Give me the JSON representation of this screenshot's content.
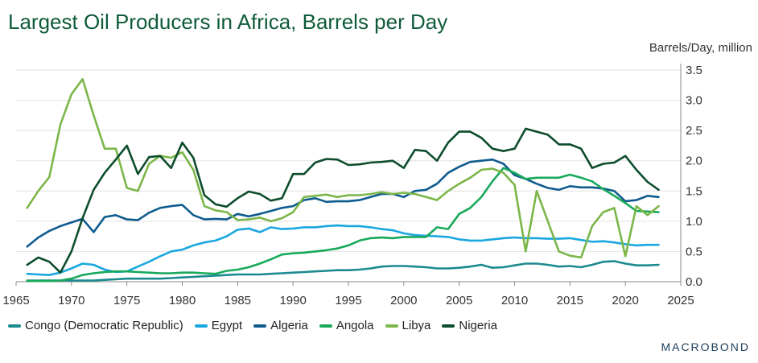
{
  "chart_data": {
    "type": "line",
    "title": "Largest Oil Producers in Africa, Barrels per Day",
    "ylabel": "Barrels/Day, million",
    "xlim": [
      1965,
      2025
    ],
    "ylim": [
      0,
      3.5
    ],
    "xticks": [
      1965,
      1970,
      1975,
      1980,
      1985,
      1990,
      1995,
      2000,
      2005,
      2010,
      2015,
      2020,
      2025
    ],
    "yticks": [
      "0.0",
      "0.5",
      "1.0",
      "1.5",
      "2.0",
      "2.5",
      "3.0",
      "3.5"
    ],
    "x": [
      1966,
      1967,
      1968,
      1969,
      1970,
      1971,
      1972,
      1973,
      1974,
      1975,
      1976,
      1977,
      1978,
      1979,
      1980,
      1981,
      1982,
      1983,
      1984,
      1985,
      1986,
      1987,
      1988,
      1989,
      1990,
      1991,
      1992,
      1993,
      1994,
      1995,
      1996,
      1997,
      1998,
      1999,
      2000,
      2001,
      2002,
      2003,
      2004,
      2005,
      2006,
      2007,
      2008,
      2009,
      2010,
      2011,
      2012,
      2013,
      2014,
      2015,
      2016,
      2017,
      2018,
      2019,
      2020,
      2021,
      2022,
      2023
    ],
    "series": [
      {
        "name": "Congo (Democratic Republic)",
        "color": "#1b8a8f",
        "values": [
          0.02,
          0.02,
          0.02,
          0.02,
          0.02,
          0.02,
          0.02,
          0.03,
          0.04,
          0.05,
          0.05,
          0.05,
          0.05,
          0.06,
          0.07,
          0.08,
          0.09,
          0.1,
          0.11,
          0.12,
          0.12,
          0.12,
          0.13,
          0.14,
          0.15,
          0.16,
          0.17,
          0.18,
          0.19,
          0.19,
          0.2,
          0.22,
          0.25,
          0.26,
          0.26,
          0.25,
          0.24,
          0.22,
          0.22,
          0.23,
          0.25,
          0.28,
          0.23,
          0.24,
          0.27,
          0.3,
          0.3,
          0.28,
          0.25,
          0.26,
          0.24,
          0.28,
          0.33,
          0.34,
          0.3,
          0.27,
          0.27,
          0.28
        ]
      },
      {
        "name": "Egypt",
        "color": "#1aa7e0",
        "values": [
          0.13,
          0.12,
          0.11,
          0.15,
          0.22,
          0.3,
          0.28,
          0.2,
          0.16,
          0.17,
          0.25,
          0.33,
          0.42,
          0.5,
          0.53,
          0.6,
          0.65,
          0.68,
          0.75,
          0.86,
          0.88,
          0.82,
          0.9,
          0.87,
          0.88,
          0.9,
          0.9,
          0.92,
          0.93,
          0.92,
          0.92,
          0.9,
          0.87,
          0.85,
          0.8,
          0.77,
          0.76,
          0.75,
          0.74,
          0.7,
          0.68,
          0.68,
          0.7,
          0.72,
          0.73,
          0.72,
          0.72,
          0.71,
          0.71,
          0.72,
          0.69,
          0.66,
          0.67,
          0.65,
          0.62,
          0.6,
          0.61,
          0.61
        ]
      },
      {
        "name": "Algeria",
        "color": "#0e5c8e",
        "values": [
          0.58,
          0.73,
          0.84,
          0.92,
          0.98,
          1.04,
          0.82,
          1.07,
          1.1,
          1.03,
          1.02,
          1.14,
          1.22,
          1.25,
          1.27,
          1.1,
          1.03,
          1.04,
          1.03,
          1.12,
          1.08,
          1.12,
          1.17,
          1.22,
          1.25,
          1.35,
          1.38,
          1.32,
          1.33,
          1.33,
          1.35,
          1.4,
          1.45,
          1.45,
          1.4,
          1.5,
          1.52,
          1.62,
          1.8,
          1.9,
          1.98,
          2.0,
          2.02,
          1.95,
          1.76,
          1.7,
          1.62,
          1.55,
          1.52,
          1.58,
          1.56,
          1.56,
          1.54,
          1.5,
          1.33,
          1.35,
          1.42,
          1.4
        ]
      },
      {
        "name": "Angola",
        "color": "#18a95a",
        "values": [
          0.01,
          0.01,
          0.01,
          0.02,
          0.05,
          0.11,
          0.14,
          0.16,
          0.17,
          0.17,
          0.16,
          0.15,
          0.14,
          0.14,
          0.15,
          0.15,
          0.14,
          0.13,
          0.18,
          0.2,
          0.24,
          0.3,
          0.37,
          0.45,
          0.47,
          0.48,
          0.5,
          0.52,
          0.55,
          0.6,
          0.68,
          0.72,
          0.73,
          0.72,
          0.74,
          0.74,
          0.74,
          0.9,
          0.87,
          1.12,
          1.22,
          1.4,
          1.66,
          1.88,
          1.8,
          1.7,
          1.72,
          1.72,
          1.72,
          1.77,
          1.72,
          1.66,
          1.53,
          1.42,
          1.3,
          1.17,
          1.16,
          1.15
        ]
      },
      {
        "name": "Libya",
        "color": "#7ab648",
        "values": [
          1.22,
          1.5,
          1.73,
          2.6,
          3.1,
          3.35,
          2.75,
          2.2,
          2.2,
          1.55,
          1.5,
          1.95,
          2.08,
          2.05,
          2.14,
          1.85,
          1.25,
          1.18,
          1.15,
          1.02,
          1.03,
          1.06,
          1.0,
          1.05,
          1.15,
          1.4,
          1.42,
          1.44,
          1.4,
          1.43,
          1.43,
          1.45,
          1.48,
          1.45,
          1.47,
          1.45,
          1.4,
          1.35,
          1.5,
          1.62,
          1.72,
          1.85,
          1.87,
          1.8,
          1.6,
          0.5,
          1.5,
          1.0,
          0.5,
          0.43,
          0.4,
          0.92,
          1.15,
          1.22,
          0.42,
          1.25,
          1.1,
          1.25
        ]
      },
      {
        "name": "Nigeria",
        "color": "#0d4d2c",
        "values": [
          0.28,
          0.4,
          0.33,
          0.15,
          0.5,
          1.05,
          1.52,
          1.8,
          2.02,
          2.25,
          1.78,
          2.06,
          2.08,
          1.88,
          2.3,
          2.05,
          1.43,
          1.28,
          1.24,
          1.38,
          1.49,
          1.45,
          1.34,
          1.38,
          1.78,
          1.78,
          1.97,
          2.03,
          2.02,
          1.93,
          1.94,
          1.97,
          1.98,
          2.0,
          1.88,
          2.18,
          2.16,
          2.0,
          2.3,
          2.48,
          2.48,
          2.38,
          2.2,
          2.16,
          2.2,
          2.53,
          2.48,
          2.43,
          2.27,
          2.27,
          2.2,
          1.88,
          1.95,
          1.97,
          2.08,
          1.85,
          1.65,
          1.52
        ]
      }
    ]
  },
  "brand": "MACROBOND"
}
